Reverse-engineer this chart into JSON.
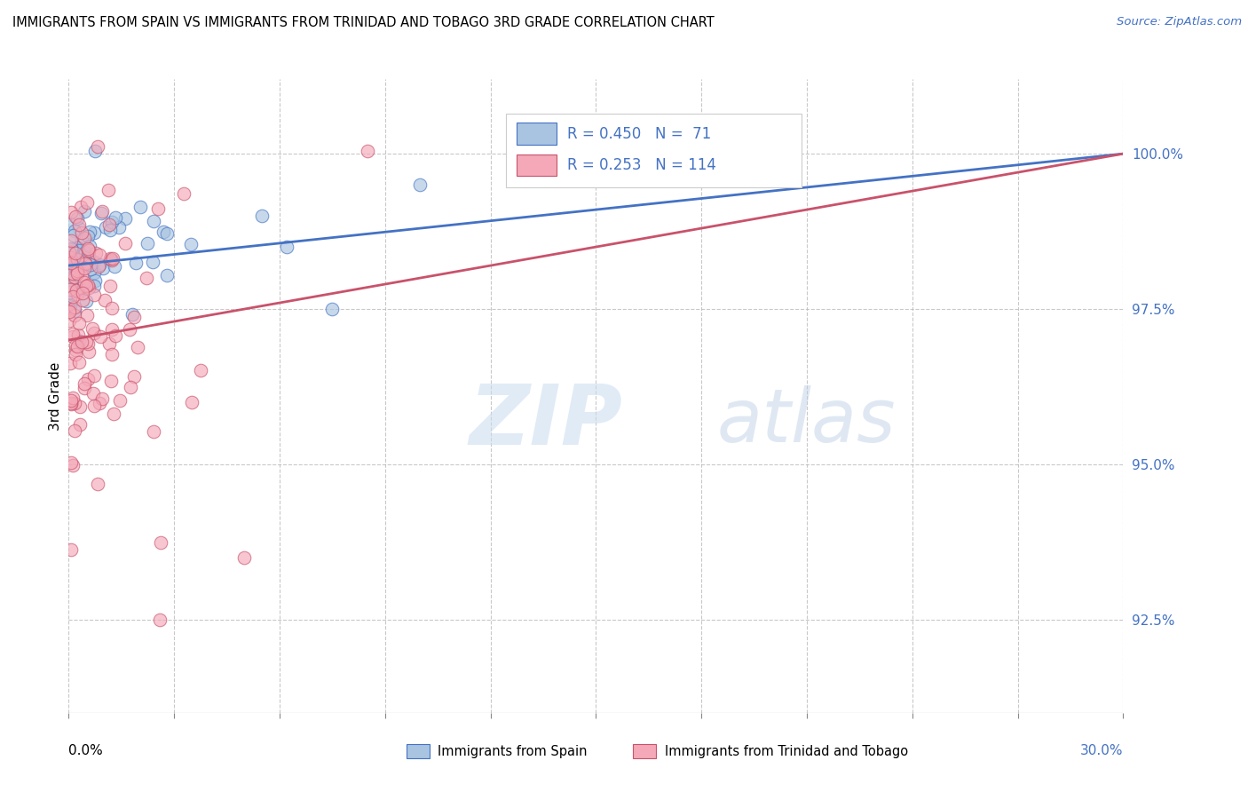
{
  "title": "IMMIGRANTS FROM SPAIN VS IMMIGRANTS FROM TRINIDAD AND TOBAGO 3RD GRADE CORRELATION CHART",
  "source": "Source: ZipAtlas.com",
  "ylabel": "3rd Grade",
  "ylabel_tick_vals": [
    92.5,
    95.0,
    97.5,
    100.0
  ],
  "ymin": 91.0,
  "ymax": 101.2,
  "xmin": 0.0,
  "xmax": 30.0,
  "legend_blue_label": "Immigrants from Spain",
  "legend_pink_label": "Immigrants from Trinidad and Tobago",
  "R_blue": 0.45,
  "N_blue": 71,
  "R_pink": 0.253,
  "N_pink": 114,
  "blue_color": "#A8C4E0",
  "pink_color": "#F4A8B8",
  "trendline_blue": "#4472C4",
  "trendline_pink": "#C9526B",
  "background_color": "#FFFFFF",
  "grid_color": "#BBBBBB"
}
